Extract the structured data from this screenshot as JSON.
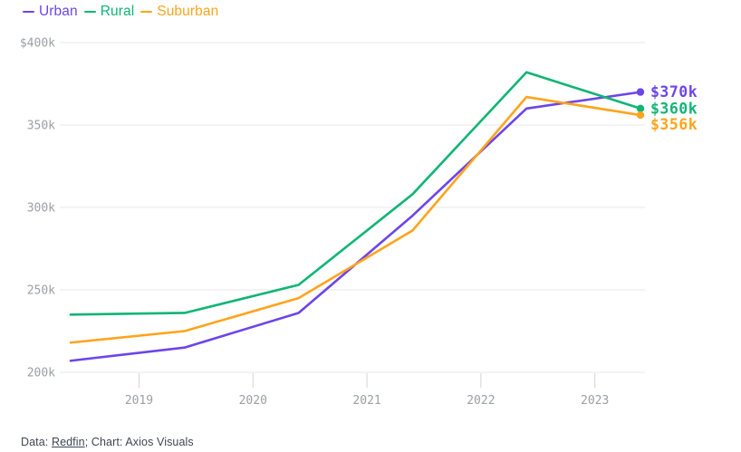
{
  "chart_data": {
    "type": "line",
    "title": "",
    "xlabel": "",
    "ylabel": "",
    "x": [
      2018.4,
      2019.4,
      2020.4,
      2021.4,
      2022.4,
      2023.4
    ],
    "series": [
      {
        "name": "Urban",
        "color": "#6c45e9",
        "values": [
          207,
          215,
          236,
          295,
          360,
          370
        ],
        "end_label": "$370k"
      },
      {
        "name": "Rural",
        "color": "#10b574",
        "values": [
          235,
          236,
          253,
          308,
          382,
          360
        ],
        "end_label": "$360k"
      },
      {
        "name": "Suburban",
        "color": "#ffa41c",
        "values": [
          218,
          225,
          245,
          286,
          367,
          356
        ],
        "end_label": "$356k"
      }
    ],
    "x_ticks": [
      {
        "value": 2019,
        "label": "2019"
      },
      {
        "value": 2020,
        "label": "2020"
      },
      {
        "value": 2021,
        "label": "2021"
      },
      {
        "value": 2022,
        "label": "2022"
      },
      {
        "value": 2023,
        "label": "2023"
      }
    ],
    "y_ticks": [
      {
        "value": 400,
        "label": "$400k"
      },
      {
        "value": 350,
        "label": "350k"
      },
      {
        "value": 300,
        "label": "300k"
      },
      {
        "value": 250,
        "label": "250k"
      },
      {
        "value": 200,
        "label": "200k"
      }
    ],
    "xlim": [
      2018.4,
      2023.4
    ],
    "ylim": [
      200,
      400
    ],
    "grid": "horizontal-only",
    "legend_position": "top-left",
    "value_unit": "$ thousands"
  },
  "footer": {
    "prefix": "Data: ",
    "source_link": "Redfin",
    "suffix": "; Chart: Axios Visuals"
  },
  "colors": {
    "background": "#ffffff",
    "grid": "#e9e7e7",
    "tick": "#d4d4d4",
    "axis_text": "#9aa0a6",
    "footer_text": "#3f4650"
  }
}
